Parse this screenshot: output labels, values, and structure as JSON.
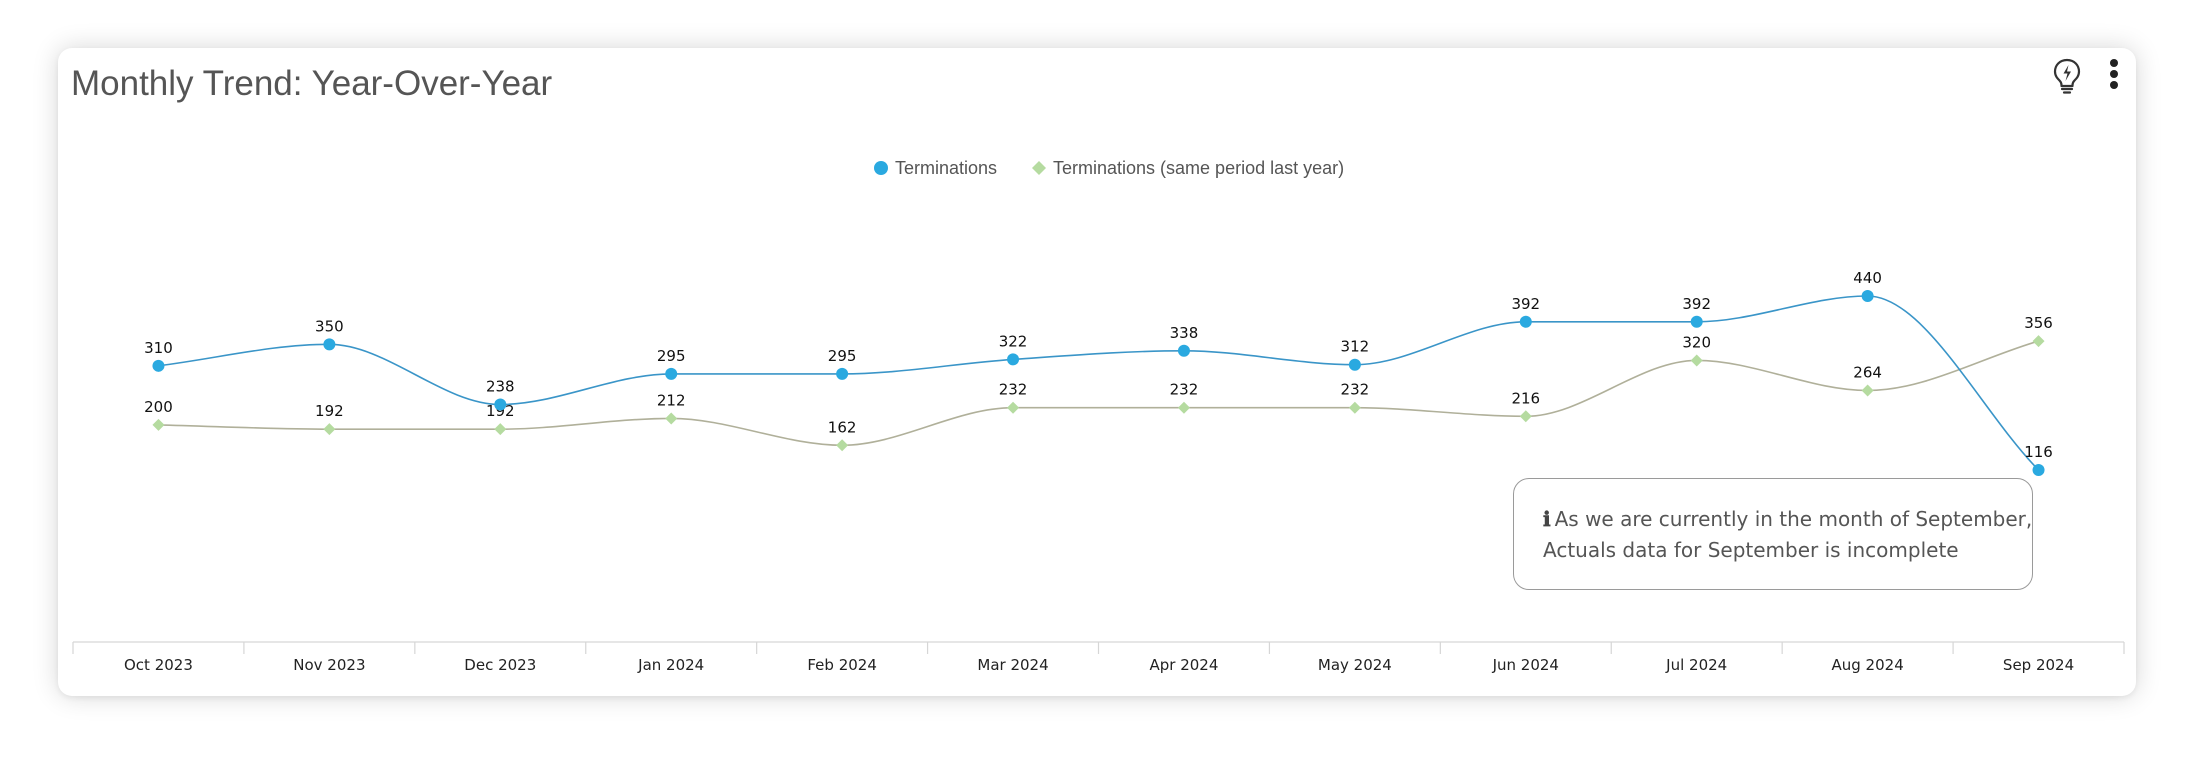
{
  "card": {
    "title": "Monthly Trend: Year-Over-Year",
    "icons": [
      "lightbulb-icon",
      "more-vertical-icon"
    ]
  },
  "note": {
    "icon": "ℹ",
    "line1": "As we are currently in the month of September,",
    "line2": "Actuals data for  September is incomplete"
  },
  "chart_data": {
    "type": "line",
    "title": "",
    "xlabel": "",
    "ylabel": "",
    "categories": [
      "Oct 2023",
      "Nov 2023",
      "Dec 2023",
      "Jan 2024",
      "Feb 2024",
      "Mar 2024",
      "Apr 2024",
      "May 2024",
      "Jun 2024",
      "Jul 2024",
      "Aug 2024",
      "Sep 2024"
    ],
    "series": [
      {
        "name": "Terminations",
        "values": [
          310,
          350,
          238,
          295,
          295,
          322,
          338,
          312,
          392,
          392,
          440,
          116
        ],
        "color": "#2aa9e0",
        "line_color": "#3a95c8",
        "marker": "circle"
      },
      {
        "name": "Terminations (same period last year)",
        "values": [
          200,
          192,
          192,
          212,
          162,
          232,
          232,
          232,
          216,
          320,
          264,
          356
        ],
        "color": "#b5dba0",
        "line_color": "#b0b09a",
        "marker": "diamond"
      }
    ],
    "legend_position": "top-center",
    "grid": false,
    "y_axis_visible": false,
    "smooth": true
  }
}
